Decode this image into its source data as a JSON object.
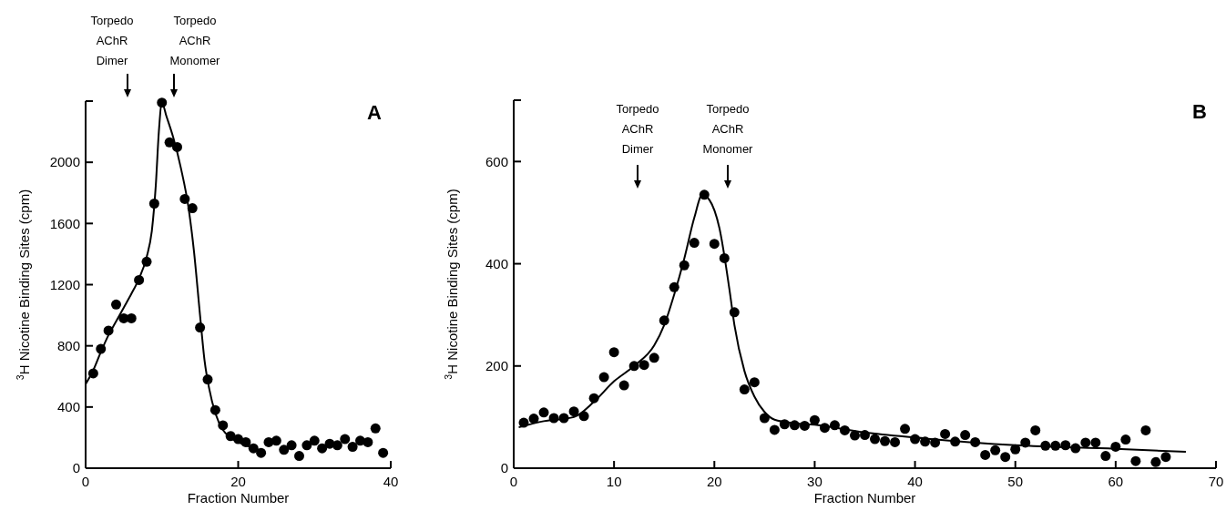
{
  "chart_data": [
    {
      "type": "scatter",
      "xlabel": "Fraction Number",
      "ylabel": "$^{3}$H Nicotine Binding Sites (cpm)",
      "xlim": [
        0,
        40
      ],
      "xticks": [
        0,
        20,
        40
      ],
      "ylim": [
        0,
        2400
      ],
      "yticks": [
        0,
        400,
        800,
        1200,
        1600,
        2000,
        {
          "value": 2400,
          "label": null
        }
      ],
      "line_style": "solid",
      "grid": false,
      "annotations": [
        "A",
        "Torpedo AChR Dimer",
        "Torpedo AChR Monomer"
      ],
      "series": [
        {
          "marker": "circle",
          "color": "#000000",
          "x": [
            1,
            2,
            3,
            4,
            5,
            6,
            7,
            8,
            9,
            10,
            11,
            12,
            13,
            14,
            15,
            16,
            17,
            18,
            19,
            20,
            21,
            22,
            23,
            24,
            25,
            26,
            27,
            28,
            29,
            30,
            31,
            32,
            33,
            34,
            35,
            36,
            37,
            38,
            39
          ],
          "values": [
            620,
            780,
            900,
            1070,
            980,
            980,
            1230,
            1350,
            1730,
            2390,
            2130,
            2100,
            1760,
            1700,
            920,
            580,
            380,
            280,
            210,
            190,
            170,
            130,
            100,
            170,
            180,
            120,
            150,
            80,
            150,
            180,
            130,
            160,
            150,
            190,
            140,
            180,
            170,
            260,
            100
          ]
        },
        {
          "type": "line",
          "color": "#000000",
          "x": [
            0,
            1,
            2,
            3,
            4,
            5,
            6,
            7,
            8,
            8.7,
            9.2,
            9.6,
            10,
            10.6,
            11.5,
            12.5,
            13.5,
            14.2,
            15,
            15.6,
            16.2,
            17,
            18,
            19,
            20,
            21,
            22,
            23
          ],
          "values": [
            550,
            640,
            760,
            870,
            960,
            1050,
            1140,
            1240,
            1380,
            1560,
            1850,
            2200,
            2390,
            2300,
            2160,
            1960,
            1700,
            1420,
            1000,
            700,
            520,
            360,
            250,
            200,
            170,
            150,
            130,
            110
          ]
        }
      ]
    },
    {
      "type": "scatter",
      "xlabel": "Fraction Number",
      "ylabel": "$^{3}$H Nicotine Binding Sites (cpm)",
      "xlim": [
        0,
        70
      ],
      "xticks": [
        0,
        10,
        20,
        30,
        40,
        50,
        60,
        70
      ],
      "ylim": [
        0,
        720
      ],
      "yticks": [
        0,
        200,
        400,
        600,
        {
          "value": 720,
          "label": null
        }
      ],
      "line_style": "solid",
      "grid": false,
      "annotations": [
        "B",
        "Torpedo AChR Dimer",
        "Torpedo AChR Monomer"
      ],
      "series": [
        {
          "marker": "circle",
          "color": "#000000",
          "x": [
            1,
            2,
            3,
            4,
            5,
            6,
            7,
            8,
            9,
            10,
            11,
            12,
            13,
            14,
            15,
            16,
            17,
            18,
            19,
            20,
            21,
            22,
            23,
            24,
            25,
            26,
            27,
            28,
            29,
            30,
            31,
            32,
            33,
            34,
            35,
            36,
            37,
            38,
            39,
            40,
            41,
            42,
            43,
            44,
            45,
            46,
            47,
            48,
            49,
            50,
            51,
            52,
            53,
            54,
            55,
            56,
            57,
            58,
            59,
            60,
            61,
            62,
            63,
            64,
            65
          ],
          "values": [
            89,
            97,
            109,
            98,
            98,
            111,
            102,
            137,
            178,
            227,
            162,
            200,
            202,
            216,
            289,
            354,
            397,
            441,
            535,
            439,
            411,
            305,
            154,
            168,
            98,
            75,
            86,
            84,
            83,
            94,
            79,
            84,
            74,
            64,
            65,
            57,
            53,
            51,
            77,
            57,
            52,
            50,
            67,
            52,
            65,
            51,
            26,
            35,
            22,
            37,
            50,
            74,
            44,
            44,
            45,
            39,
            50,
            50,
            24,
            42,
            56,
            14,
            74,
            12,
            22
          ]
        },
        {
          "type": "line",
          "color": "#000000",
          "x": [
            0.5,
            3,
            6,
            8,
            10,
            12,
            14,
            15,
            16,
            17,
            18,
            18.8,
            19.5,
            20.5,
            21.5,
            22,
            23,
            24,
            25,
            26,
            28,
            30,
            35,
            40,
            50,
            60,
            67
          ],
          "values": [
            80,
            92,
            100,
            130,
            170,
            200,
            240,
            280,
            340,
            410,
            490,
            535,
            525,
            470,
            350,
            280,
            190,
            140,
            110,
            95,
            88,
            85,
            70,
            60,
            45,
            38,
            32
          ]
        }
      ]
    }
  ]
}
